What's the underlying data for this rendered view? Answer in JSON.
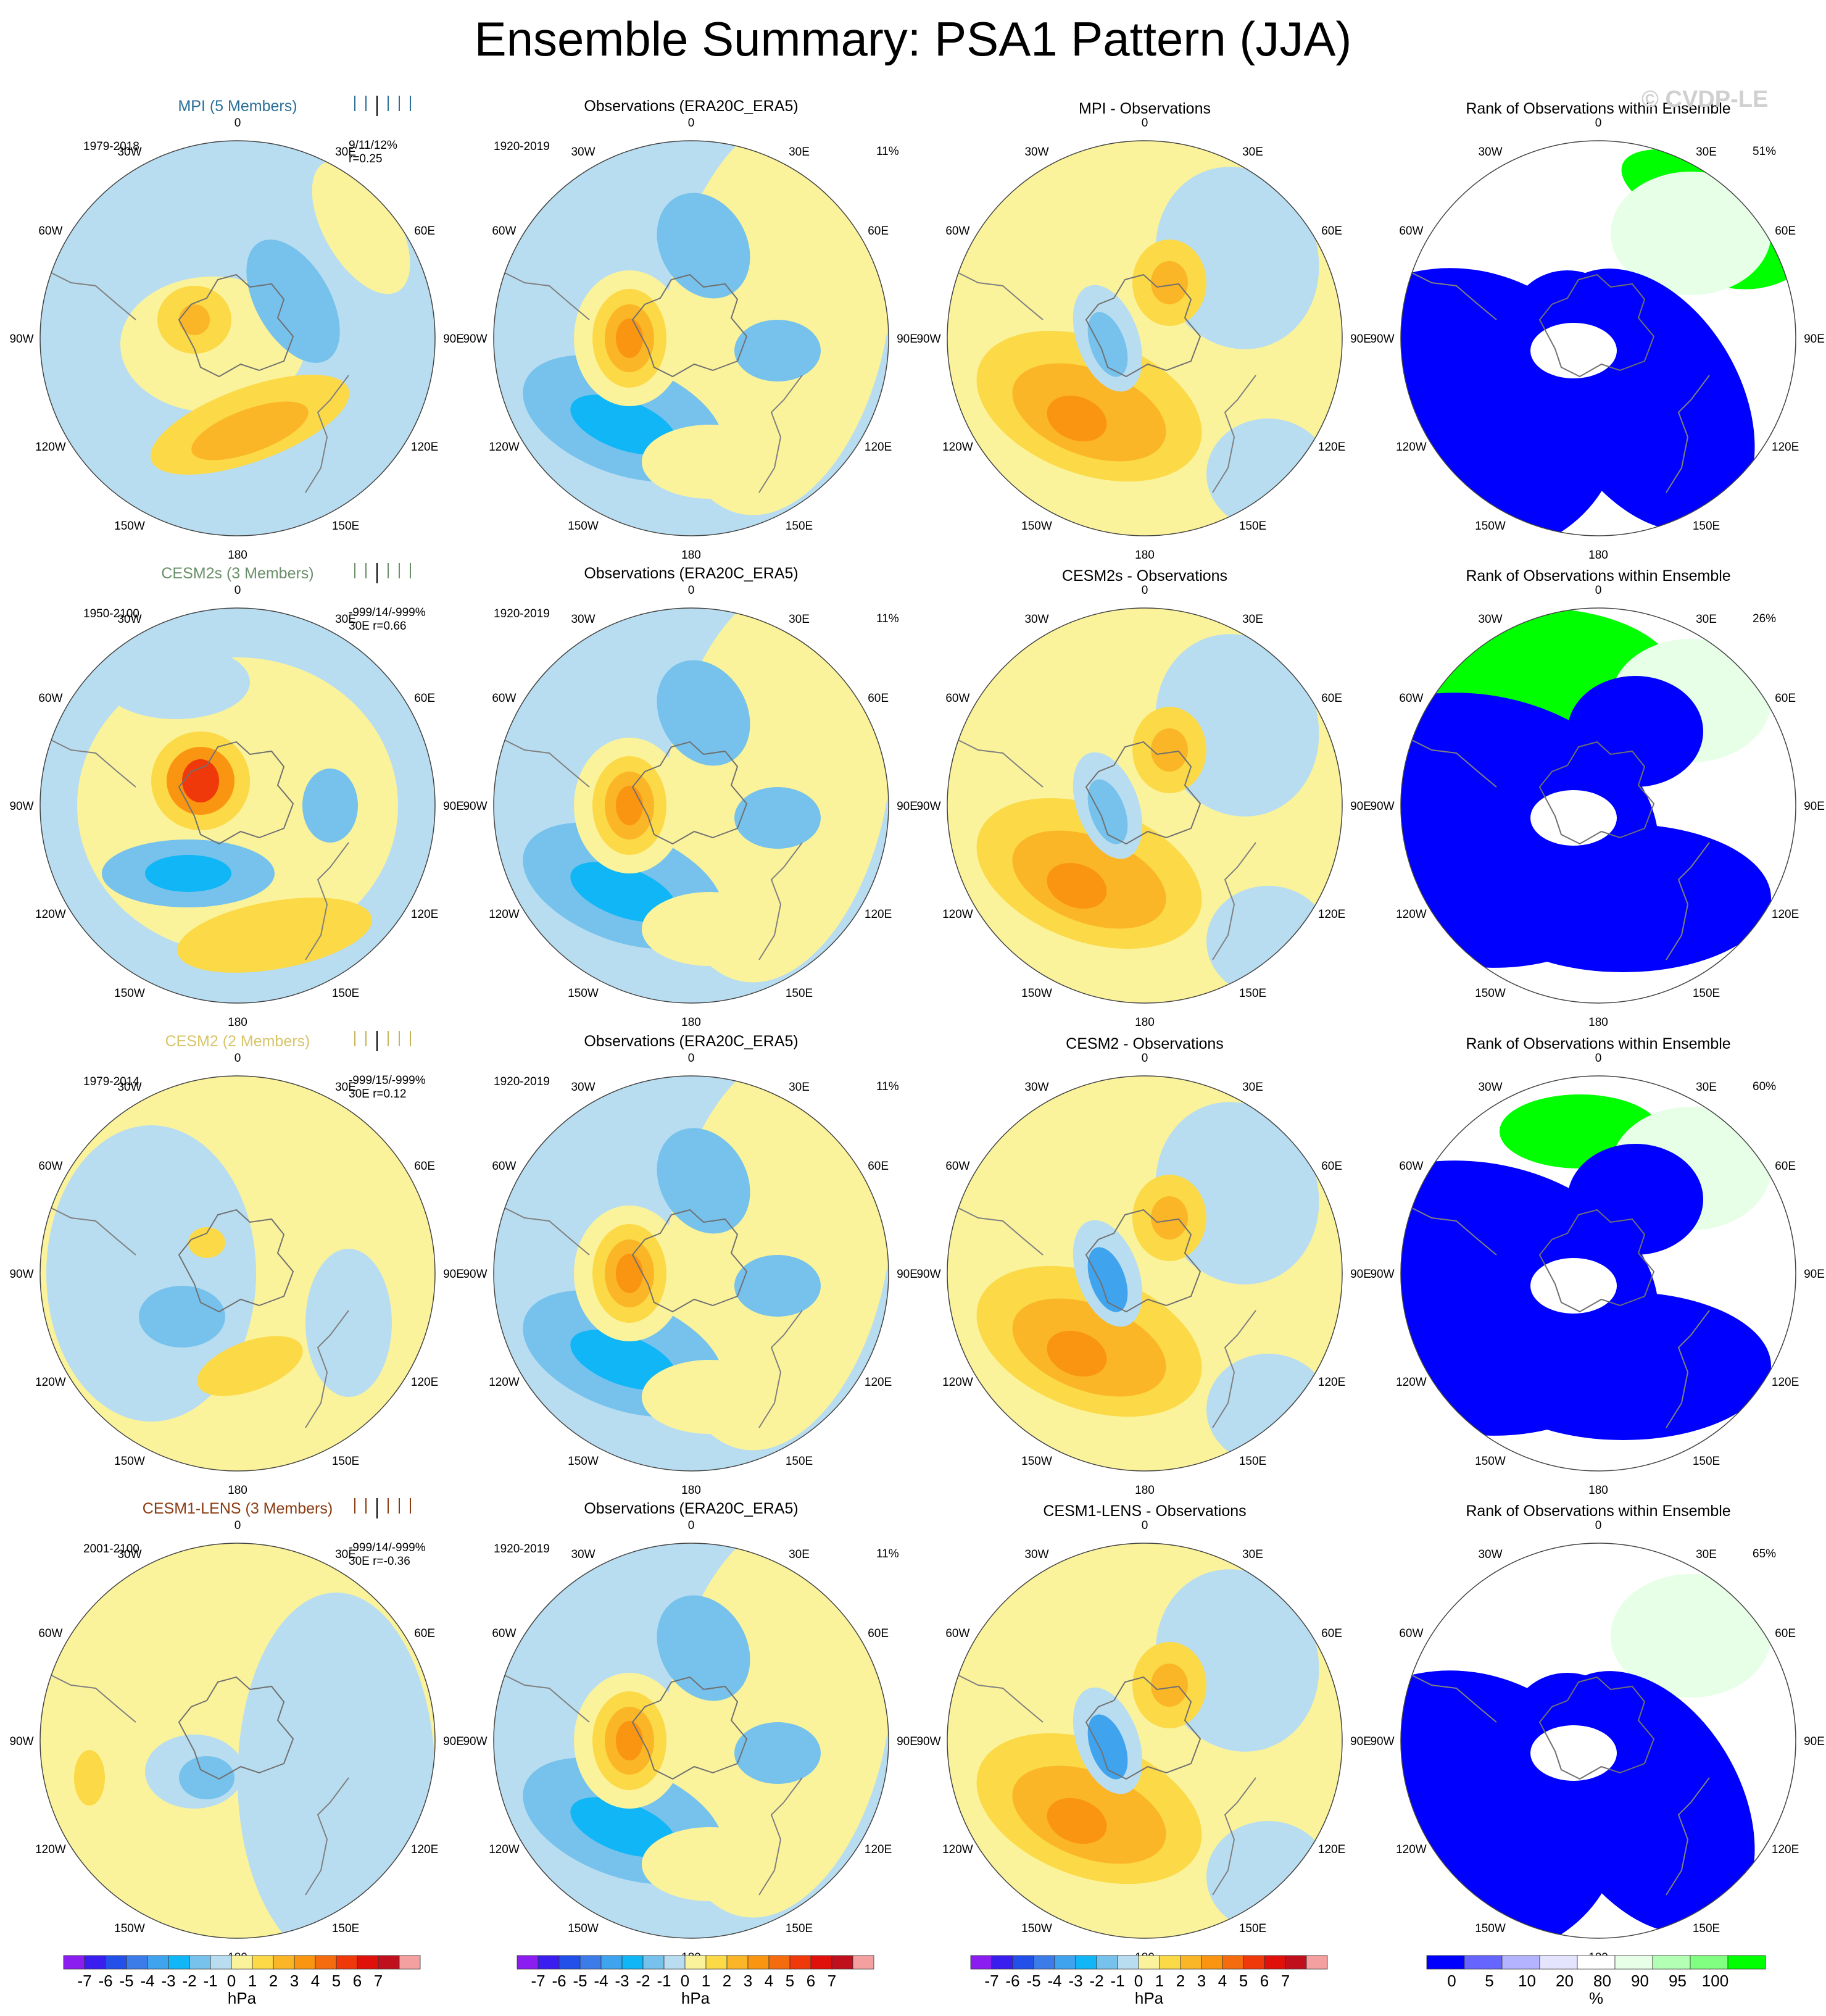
{
  "title": "Ensemble Summary: PSA1 Pattern (JJA)",
  "watermark": "© CVDP-LE",
  "colors": {
    "ocean": "#b8ddf0",
    "levels": [
      "#8b1df0",
      "#3a1ef0",
      "#2250e8",
      "#3c7ce8",
      "#3fa3ee",
      "#10b6f5",
      "#76c2ec",
      "#b8ddf0",
      "#fbf39b",
      "#fbd947",
      "#fbb628",
      "#fa9512",
      "#f46c0e",
      "#ef390a",
      "#e0100a",
      "#c0101e",
      "#f5a0a0"
    ],
    "rank_levels": [
      "#0000ff",
      "#6666ff",
      "#b3b3ff",
      "#e4e4ff",
      "#ffffff",
      "#e6ffe6",
      "#b3ffb3",
      "#80ff80",
      "#00ff00"
    ]
  },
  "colorbars": {
    "pressure_ticks": [
      "-7",
      "-6",
      "-5",
      "-4",
      "-3",
      "-2",
      "-1",
      "0",
      "1",
      "2",
      "3",
      "4",
      "5",
      "6",
      "7"
    ],
    "pressure_unit": "hPa",
    "rank_ticks": [
      "0",
      "5",
      "10",
      "20",
      "80",
      "90",
      "95",
      "100"
    ],
    "rank_unit": "%"
  },
  "longitude_labels": [
    "0",
    "30E",
    "60E",
    "90E",
    "120E",
    "150E",
    "180",
    "150W",
    "120W",
    "90W",
    "60W",
    "30W"
  ],
  "rows": [
    {
      "model": {
        "title": "MPI (5 Members)",
        "title_color": "#2a6f97",
        "years": "1979-2018",
        "stats": [
          "9/11/12%",
          "r=0.25"
        ],
        "stats_color": "#2a6f97"
      },
      "obs": {
        "title": "Observations (ERA20C_ERA5)",
        "years": "1920-2019",
        "pct": "11%"
      },
      "diff": {
        "title": "MPI - Observations"
      },
      "rank": {
        "title": "Rank of Observations within Ensemble",
        "pct": "51%"
      }
    },
    {
      "model": {
        "title": "CESM2s (3 Members)",
        "title_color": "#6a8f6a",
        "years": "1950-2100",
        "stats": [
          "-999/14/-999%",
          "30E r=0.66"
        ],
        "stats_color": "#6a8f6a"
      },
      "obs": {
        "title": "Observations (ERA20C_ERA5)",
        "years": "1920-2019",
        "pct": "11%"
      },
      "diff": {
        "title": "CESM2s - Observations"
      },
      "rank": {
        "title": "Rank of Observations within Ensemble",
        "pct": "26%"
      }
    },
    {
      "model": {
        "title": "CESM2 (2 Members)",
        "title_color": "#d8c46a",
        "years": "1979-2014",
        "stats": [
          "-999/15/-999%",
          "30E r=0.12"
        ],
        "stats_color": "#c8b45a"
      },
      "obs": {
        "title": "Observations (ERA20C_ERA5)",
        "years": "1920-2019",
        "pct": "11%"
      },
      "diff": {
        "title": "CESM2 - Observations"
      },
      "rank": {
        "title": "Rank of Observations within Ensemble",
        "pct": "60%"
      }
    },
    {
      "model": {
        "title": "CESM1-LENS (3 Members)",
        "title_color": "#8a3a10",
        "years": "2001-2100",
        "stats": [
          "-999/14/-999%",
          "30E r=-0.36"
        ],
        "stats_color": "#8a3a10"
      },
      "obs": {
        "title": "Observations (ERA20C_ERA5)",
        "years": "1920-2019",
        "pct": "11%"
      },
      "diff": {
        "title": "CESM1-LENS - Observations"
      },
      "rank": {
        "title": "Rank of Observations within Ensemble",
        "pct": "65%"
      }
    }
  ],
  "chart_data": {
    "type": "heatmap",
    "projection": "south polar stereographic",
    "panel_columns": [
      "model pattern",
      "observations pattern",
      "model minus observations",
      "rank of observations within ensemble"
    ],
    "panel_rows": [
      "MPI",
      "CESM2s",
      "CESM2",
      "CESM1-LENS"
    ],
    "pressure_levels_hPa": [
      -7,
      -6,
      -5,
      -4,
      -3,
      -2,
      -1,
      0,
      1,
      2,
      3,
      4,
      5,
      6,
      7
    ],
    "rank_levels_pct": [
      0,
      5,
      10,
      20,
      80,
      90,
      95,
      100
    ],
    "dominant_value_per_panel": [
      [
        "positive",
        "negative",
        "positive",
        "low-rank"
      ],
      [
        "positive",
        "negative",
        "positive",
        "low-rank"
      ],
      [
        "near-zero",
        "negative",
        "positive",
        "low-rank"
      ],
      [
        "near-zero",
        "negative",
        "positive",
        "low-rank"
      ]
    ]
  }
}
